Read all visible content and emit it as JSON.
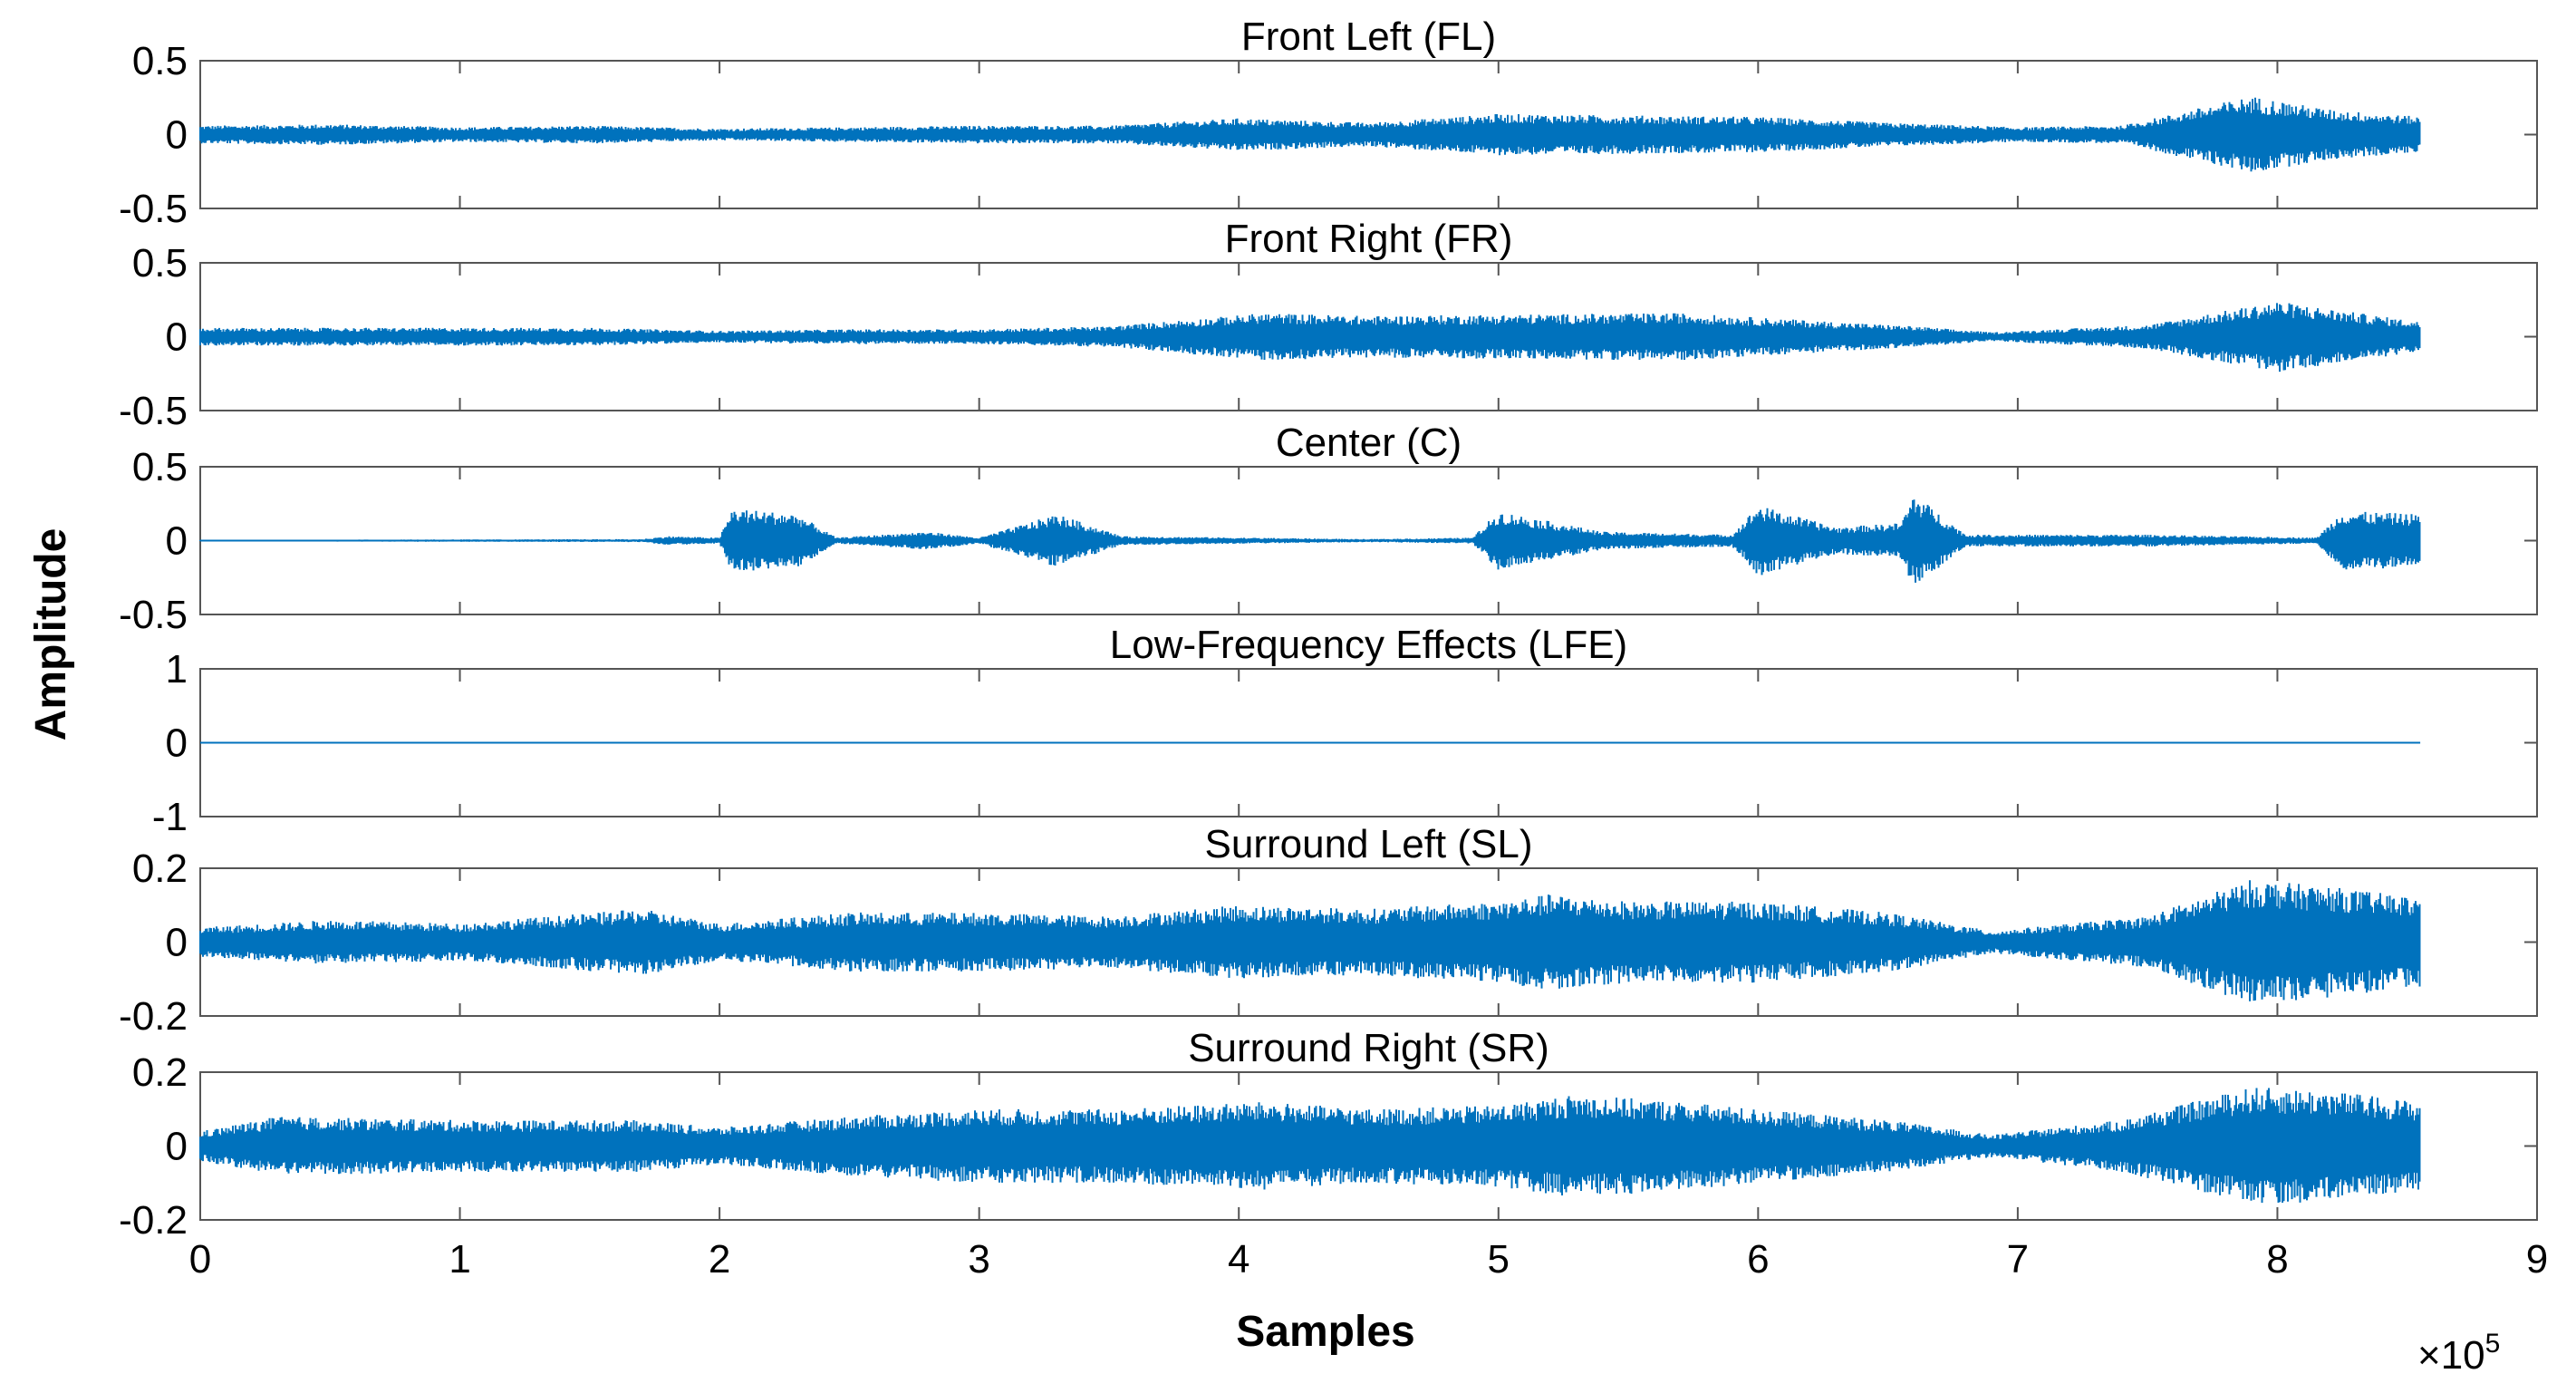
{
  "chart_data": {
    "type": "line",
    "title": "",
    "xlabel": "Samples",
    "ylabel": "Amplitude",
    "x_exponent_base": "×10",
    "x_exponent_power": "5",
    "xlim": [
      0,
      9
    ],
    "data_end_x": 8.55,
    "x_ticks": [
      0,
      1,
      2,
      3,
      4,
      5,
      6,
      7,
      8,
      9
    ],
    "x_tick_labels": [
      "0",
      "1",
      "2",
      "3",
      "4",
      "5",
      "6",
      "7",
      "8",
      "9"
    ],
    "grid": false,
    "line_color": "#0072BD",
    "axis_color": "#555555",
    "panels": [
      {
        "name": "Front Left (FL)",
        "ylim": [
          -0.5,
          0.5
        ],
        "y_ticks": [
          0.5,
          0,
          -0.5
        ],
        "y_tick_labels": [
          "0.5",
          "0",
          "-0.5"
        ],
        "envelope": [
          {
            "x": 0.0,
            "a": 0.06
          },
          {
            "x": 0.5,
            "a": 0.07
          },
          {
            "x": 1.0,
            "a": 0.05
          },
          {
            "x": 1.5,
            "a": 0.06
          },
          {
            "x": 2.0,
            "a": 0.04
          },
          {
            "x": 2.5,
            "a": 0.05
          },
          {
            "x": 3.0,
            "a": 0.06
          },
          {
            "x": 3.5,
            "a": 0.06
          },
          {
            "x": 4.0,
            "a": 0.11
          },
          {
            "x": 4.5,
            "a": 0.08
          },
          {
            "x": 5.0,
            "a": 0.14
          },
          {
            "x": 5.5,
            "a": 0.13
          },
          {
            "x": 6.0,
            "a": 0.12
          },
          {
            "x": 6.5,
            "a": 0.08
          },
          {
            "x": 7.0,
            "a": 0.05
          },
          {
            "x": 7.4,
            "a": 0.06
          },
          {
            "x": 7.9,
            "a": 0.26
          },
          {
            "x": 8.2,
            "a": 0.17
          },
          {
            "x": 8.55,
            "a": 0.12
          }
        ]
      },
      {
        "name": "Front Right (FR)",
        "ylim": [
          -0.5,
          0.5
        ],
        "y_ticks": [
          0.5,
          0,
          -0.5
        ],
        "y_tick_labels": [
          "0.5",
          "0",
          "-0.5"
        ],
        "envelope": [
          {
            "x": 0.0,
            "a": 0.06
          },
          {
            "x": 0.5,
            "a": 0.06
          },
          {
            "x": 1.0,
            "a": 0.06
          },
          {
            "x": 1.5,
            "a": 0.06
          },
          {
            "x": 2.0,
            "a": 0.04
          },
          {
            "x": 2.5,
            "a": 0.05
          },
          {
            "x": 3.0,
            "a": 0.05
          },
          {
            "x": 3.5,
            "a": 0.07
          },
          {
            "x": 4.1,
            "a": 0.16
          },
          {
            "x": 4.5,
            "a": 0.14
          },
          {
            "x": 5.0,
            "a": 0.15
          },
          {
            "x": 5.7,
            "a": 0.16
          },
          {
            "x": 6.2,
            "a": 0.11
          },
          {
            "x": 6.6,
            "a": 0.07
          },
          {
            "x": 6.9,
            "a": 0.03
          },
          {
            "x": 7.5,
            "a": 0.08
          },
          {
            "x": 8.0,
            "a": 0.24
          },
          {
            "x": 8.55,
            "a": 0.1
          }
        ]
      },
      {
        "name": "Center (C)",
        "ylim": [
          -0.5,
          0.5
        ],
        "y_ticks": [
          0.5,
          0,
          -0.5
        ],
        "y_tick_labels": [
          "0.5",
          "0",
          "-0.5"
        ],
        "envelope": [
          {
            "x": 0.0,
            "a": 0.005
          },
          {
            "x": 1.7,
            "a": 0.01
          },
          {
            "x": 1.8,
            "a": 0.03
          },
          {
            "x": 2.0,
            "a": 0.02
          },
          {
            "x": 2.05,
            "a": 0.22
          },
          {
            "x": 2.3,
            "a": 0.18
          },
          {
            "x": 2.45,
            "a": 0.02
          },
          {
            "x": 2.8,
            "a": 0.06
          },
          {
            "x": 3.0,
            "a": 0.02
          },
          {
            "x": 3.3,
            "a": 0.18
          },
          {
            "x": 3.55,
            "a": 0.03
          },
          {
            "x": 4.5,
            "a": 0.01
          },
          {
            "x": 4.9,
            "a": 0.02
          },
          {
            "x": 5.0,
            "a": 0.2
          },
          {
            "x": 5.4,
            "a": 0.06
          },
          {
            "x": 5.9,
            "a": 0.04
          },
          {
            "x": 6.0,
            "a": 0.24
          },
          {
            "x": 6.3,
            "a": 0.09
          },
          {
            "x": 6.55,
            "a": 0.12
          },
          {
            "x": 6.6,
            "a": 0.32
          },
          {
            "x": 6.8,
            "a": 0.04
          },
          {
            "x": 7.5,
            "a": 0.04
          },
          {
            "x": 8.15,
            "a": 0.02
          },
          {
            "x": 8.25,
            "a": 0.2
          },
          {
            "x": 8.55,
            "a": 0.18
          }
        ]
      },
      {
        "name": "Low-Frequency Effects (LFE)",
        "ylim": [
          -1,
          1
        ],
        "y_ticks": [
          1,
          0,
          -1
        ],
        "y_tick_labels": [
          "1",
          "0",
          "-1"
        ],
        "envelope": [
          {
            "x": 0.0,
            "a": 0.0
          },
          {
            "x": 8.55,
            "a": 0.0
          }
        ]
      },
      {
        "name": "Surround Left (SL)",
        "ylim": [
          -0.2,
          0.2
        ],
        "y_ticks": [
          0.2,
          0,
          -0.2
        ],
        "y_tick_labels": [
          "0.2",
          "0",
          "-0.2"
        ],
        "envelope": [
          {
            "x": 0.0,
            "a": 0.04
          },
          {
            "x": 0.5,
            "a": 0.06
          },
          {
            "x": 1.0,
            "a": 0.05
          },
          {
            "x": 1.7,
            "a": 0.09
          },
          {
            "x": 2.0,
            "a": 0.05
          },
          {
            "x": 2.5,
            "a": 0.08
          },
          {
            "x": 3.0,
            "a": 0.08
          },
          {
            "x": 3.5,
            "a": 0.07
          },
          {
            "x": 4.0,
            "a": 0.1
          },
          {
            "x": 4.5,
            "a": 0.09
          },
          {
            "x": 5.0,
            "a": 0.11
          },
          {
            "x": 5.2,
            "a": 0.13
          },
          {
            "x": 5.5,
            "a": 0.11
          },
          {
            "x": 6.0,
            "a": 0.11
          },
          {
            "x": 6.5,
            "a": 0.08
          },
          {
            "x": 6.9,
            "a": 0.03
          },
          {
            "x": 7.5,
            "a": 0.07
          },
          {
            "x": 7.9,
            "a": 0.17
          },
          {
            "x": 8.2,
            "a": 0.15
          },
          {
            "x": 8.55,
            "a": 0.12
          }
        ]
      },
      {
        "name": "Surround Right (SR)",
        "ylim": [
          -0.2,
          0.2
        ],
        "y_ticks": [
          0.2,
          0,
          -0.2
        ],
        "y_tick_labels": [
          "0.2",
          "0",
          "-0.2"
        ],
        "envelope": [
          {
            "x": 0.0,
            "a": 0.04
          },
          {
            "x": 0.3,
            "a": 0.08
          },
          {
            "x": 1.0,
            "a": 0.07
          },
          {
            "x": 1.7,
            "a": 0.07
          },
          {
            "x": 2.0,
            "a": 0.05
          },
          {
            "x": 2.5,
            "a": 0.08
          },
          {
            "x": 3.0,
            "a": 0.1
          },
          {
            "x": 3.5,
            "a": 0.1
          },
          {
            "x": 4.1,
            "a": 0.12
          },
          {
            "x": 4.5,
            "a": 0.1
          },
          {
            "x": 5.0,
            "a": 0.11
          },
          {
            "x": 5.3,
            "a": 0.14
          },
          {
            "x": 5.7,
            "a": 0.12
          },
          {
            "x": 6.0,
            "a": 0.1
          },
          {
            "x": 6.5,
            "a": 0.07
          },
          {
            "x": 6.9,
            "a": 0.03
          },
          {
            "x": 7.4,
            "a": 0.07
          },
          {
            "x": 7.9,
            "a": 0.16
          },
          {
            "x": 8.2,
            "a": 0.15
          },
          {
            "x": 8.55,
            "a": 0.12
          }
        ]
      }
    ]
  }
}
